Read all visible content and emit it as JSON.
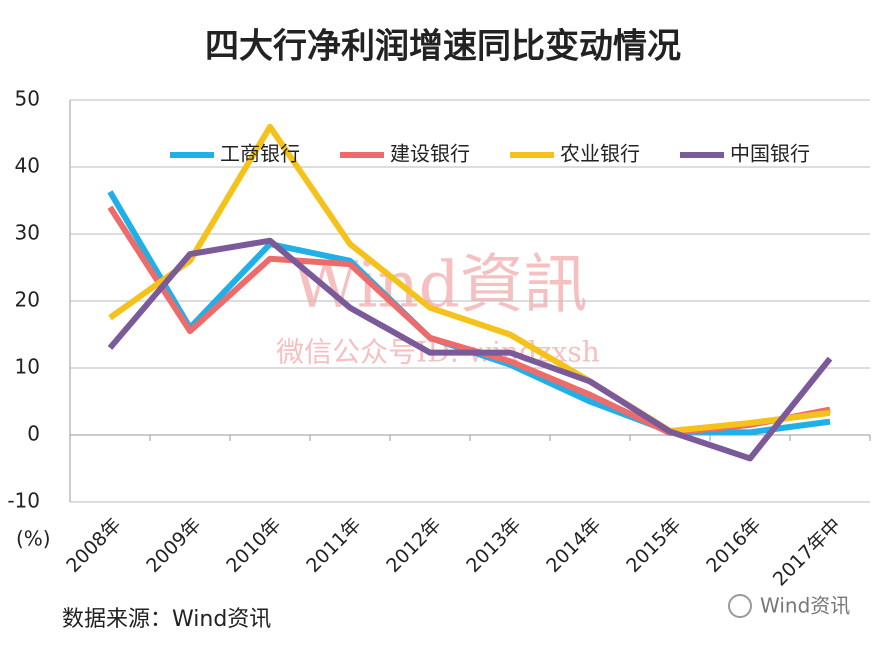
{
  "chart_data": {
    "type": "line",
    "title": "四大行净利润增速同比变动情况",
    "y_label": "(%)",
    "categories": [
      "2008年",
      "2009年",
      "2010年",
      "2011年",
      "2012年",
      "2013年",
      "2014年",
      "2015年",
      "2016年",
      "2017年中"
    ],
    "series": [
      {
        "name": "工商银行",
        "color": "#1fb0e8",
        "values": [
          36.3,
          16,
          28.5,
          26,
          14.5,
          10.5,
          5,
          0.5,
          0.4,
          2
        ]
      },
      {
        "name": "建设银行",
        "color": "#ee6b6b",
        "values": [
          34,
          15.5,
          26.3,
          25.5,
          14.5,
          11,
          6,
          0.3,
          1.5,
          3.8
        ]
      },
      {
        "name": "农业银行",
        "color": "#f5c21b",
        "values": [
          17.5,
          26,
          46,
          28.5,
          19,
          15,
          8,
          0.6,
          1.8,
          3.3
        ]
      },
      {
        "name": "中国银行",
        "color": "#7b5a9a",
        "values": [
          13,
          27,
          29,
          19,
          12.3,
          12.3,
          8,
          0.5,
          -3.5,
          11.4
        ]
      }
    ],
    "ylim": [
      -10,
      50
    ],
    "yticks": [
      -10,
      0,
      10,
      20,
      30,
      40,
      50
    ],
    "grid": true,
    "legend": "top",
    "watermark": [
      "Wind資訊",
      "微信公众号ID: windzxsh"
    ],
    "source": "数据来源：Wind资讯",
    "brand": "Wind资讯"
  }
}
